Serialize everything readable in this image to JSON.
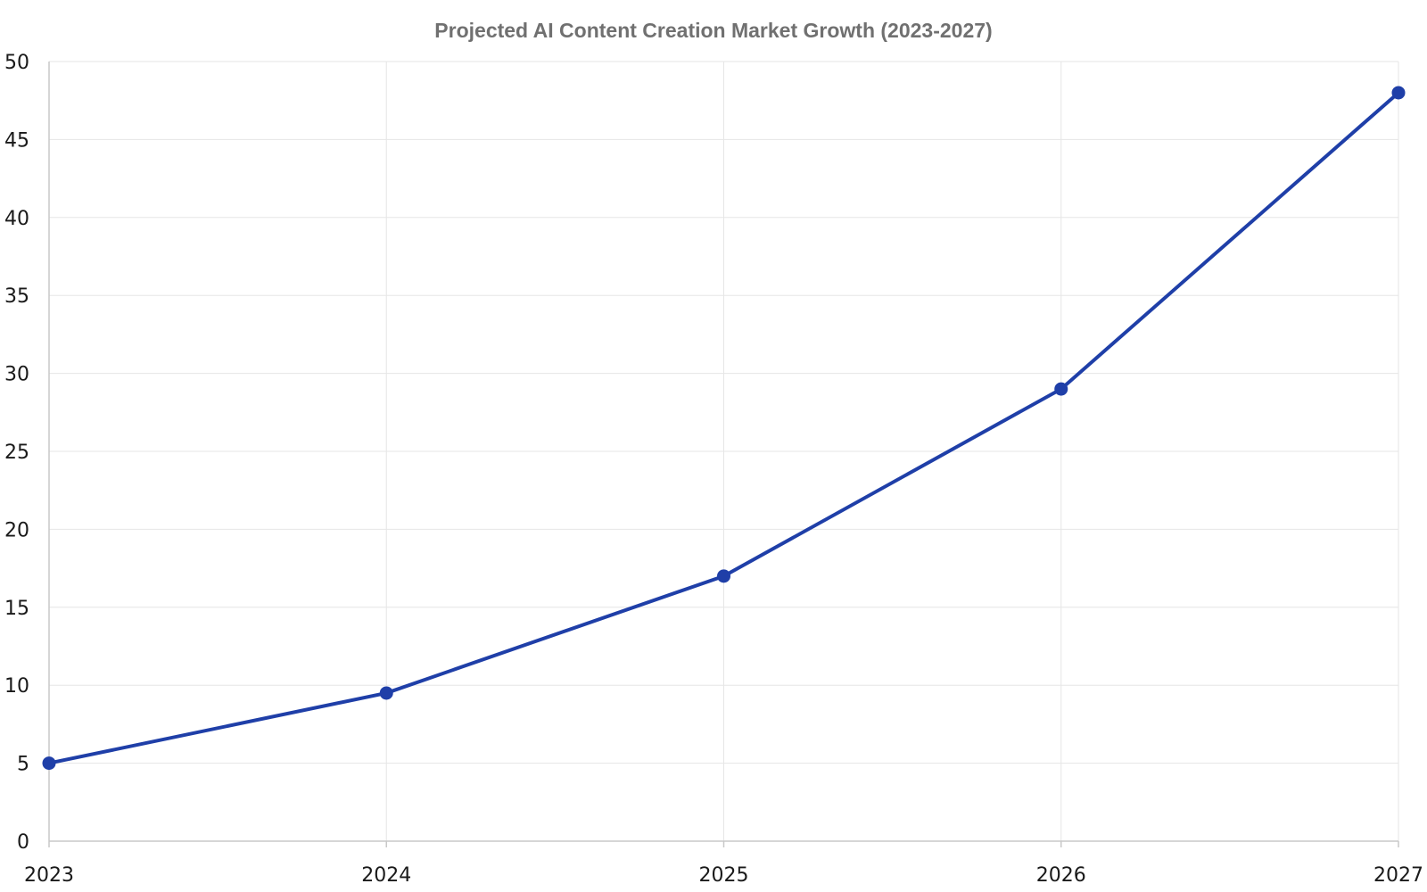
{
  "chart_data": {
    "type": "line",
    "title": "Projected AI Content Creation Market Growth (2023-2027)",
    "xlabel": "",
    "ylabel": "",
    "categories": [
      "2023",
      "2024",
      "2025",
      "2026",
      "2027"
    ],
    "series": [
      {
        "values": [
          5,
          9.5,
          17,
          29,
          48
        ],
        "color": "#1f3fa8"
      }
    ],
    "ylim": [
      0,
      50
    ],
    "y_ticks": [
      0,
      5,
      10,
      15,
      20,
      25,
      30,
      35,
      40,
      45,
      50
    ],
    "grid": true,
    "legend": "none"
  },
  "colors": {
    "line": "#1f3fa8",
    "grid": "#e6e6e6",
    "axis": "#c8c8c8",
    "title": "#707070",
    "tick_text": "#1a1a1a"
  }
}
